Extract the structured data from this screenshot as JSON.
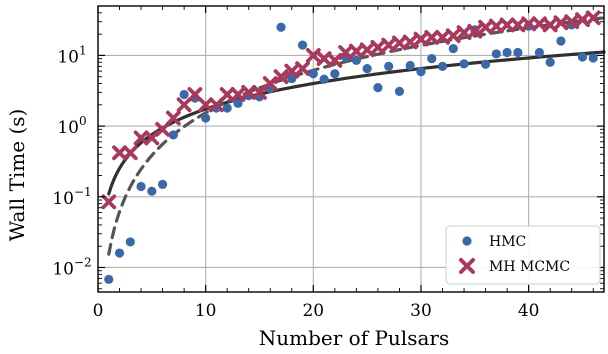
{
  "chart_data": {
    "type": "scatter",
    "title": "",
    "xlabel": "Number of Pulsars",
    "ylabel": "Wall Time (s)",
    "xlim": [
      0,
      47
    ],
    "ylim": [
      0.0045,
      50
    ],
    "y_scale": "log",
    "grid": true,
    "legend_position": "bottom-right",
    "x_ticks": [
      0,
      10,
      20,
      30,
      40
    ],
    "y_ticks": [
      {
        "value": 0.01,
        "base": "10",
        "exp": "−2"
      },
      {
        "value": 0.1,
        "base": "10",
        "exp": "−1"
      },
      {
        "value": 1,
        "base": "10",
        "exp": "0"
      },
      {
        "value": 10,
        "base": "10",
        "exp": "1"
      }
    ],
    "series": [
      {
        "name": "HMC",
        "marker": "circle",
        "color": "#3a68a8",
        "x": [
          1,
          2,
          3,
          4,
          5,
          6,
          7,
          8,
          9,
          10,
          11,
          12,
          13,
          14,
          15,
          16,
          17,
          18,
          19,
          20,
          21,
          22,
          23,
          24,
          25,
          26,
          27,
          28,
          29,
          30,
          31,
          32,
          33,
          34,
          35,
          36,
          37,
          38,
          39,
          40,
          41,
          42,
          43,
          44,
          45,
          46
        ],
        "y": [
          0.0068,
          0.016,
          0.023,
          0.14,
          0.12,
          0.15,
          0.75,
          2.8,
          2.5,
          1.3,
          1.8,
          1.8,
          2.1,
          2.7,
          2.6,
          3.4,
          25,
          4.7,
          14,
          5.5,
          4.6,
          5.5,
          9.5,
          8.5,
          6.5,
          3.5,
          7.0,
          3.1,
          7.2,
          5.9,
          9.0,
          7.0,
          12.5,
          7.6,
          23,
          7.5,
          10.5,
          11,
          11,
          26,
          11,
          8.0,
          16,
          27,
          9.5,
          9.2
        ]
      },
      {
        "name": "MH MCMC",
        "marker": "x",
        "color": "#a8385c",
        "x": [
          1,
          2,
          3,
          4,
          5,
          6,
          7,
          8,
          9,
          10,
          11,
          12,
          13,
          14,
          15,
          16,
          17,
          18,
          19,
          20,
          21,
          22,
          23,
          24,
          25,
          26,
          27,
          28,
          29,
          30,
          31,
          32,
          33,
          34,
          35,
          36,
          37,
          38,
          39,
          40,
          41,
          42,
          43,
          44,
          45,
          46
        ],
        "y": [
          0.085,
          0.42,
          0.42,
          0.68,
          0.68,
          0.9,
          1.3,
          2.0,
          2.8,
          2.0,
          2.0,
          2.8,
          2.8,
          3.0,
          3.0,
          4.0,
          5.0,
          6.0,
          6.5,
          10,
          9.0,
          8.5,
          11,
          11.5,
          12,
          13,
          14,
          15,
          15.5,
          17,
          18,
          18,
          19,
          21,
          22,
          25,
          26,
          27,
          27,
          28,
          28,
          27,
          29,
          30,
          32,
          34
        ]
      }
    ],
    "fit_lines": [
      {
        "style": "solid",
        "color": "#303030",
        "a": 0.11,
        "b": 1.2
      },
      {
        "style": "dashed",
        "color": "#555555",
        "a": 0.0154,
        "b": 2.0
      }
    ]
  }
}
